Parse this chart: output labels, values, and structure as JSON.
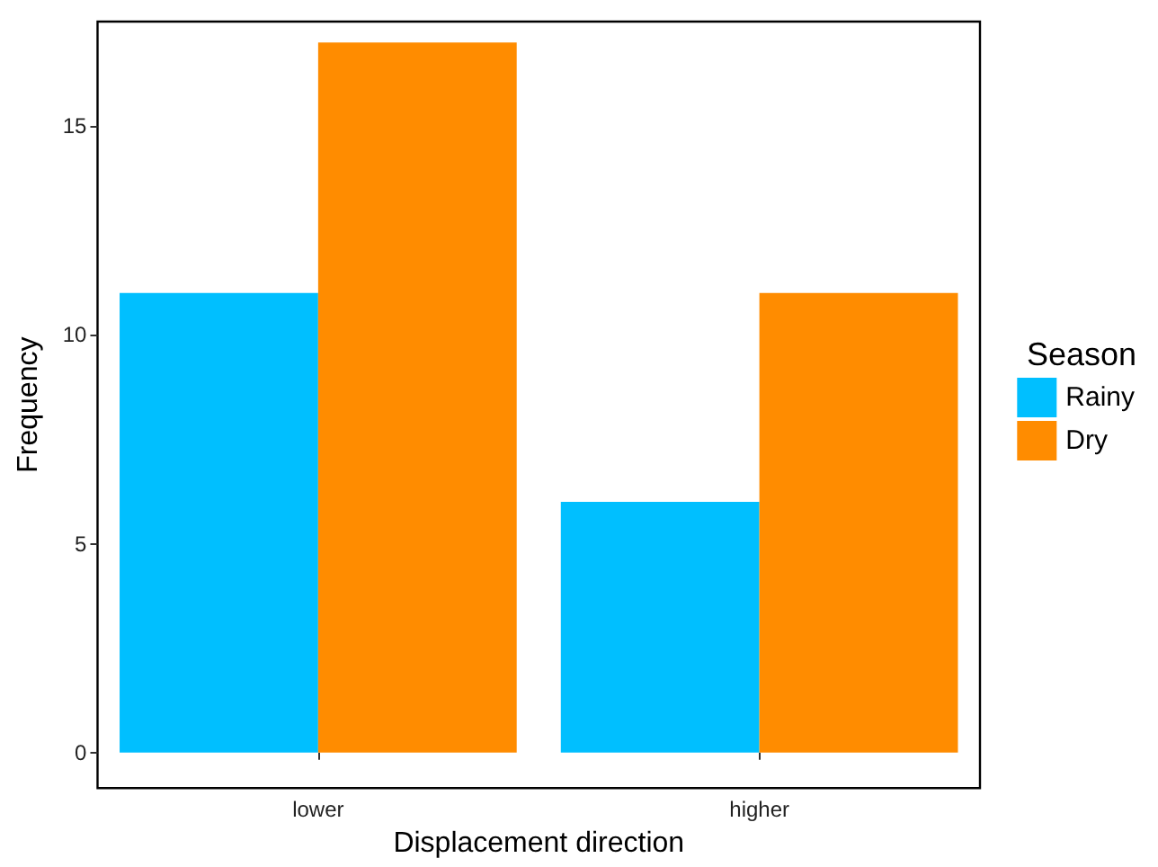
{
  "chart_data": {
    "type": "bar",
    "xlabel": "Displacement direction",
    "ylabel": "Frequency",
    "legend_title": "Season",
    "categories": [
      "lower",
      "higher"
    ],
    "series": [
      {
        "name": "Rainy",
        "color": "#00bfff",
        "values": [
          11,
          6
        ]
      },
      {
        "name": "Dry",
        "color": "#ff8c00",
        "values": [
          17,
          11
        ]
      }
    ],
    "ylim": [
      -0.85,
      17.5
    ],
    "yticks": [
      0,
      5,
      10,
      15
    ],
    "grid": false,
    "legend": "right"
  }
}
